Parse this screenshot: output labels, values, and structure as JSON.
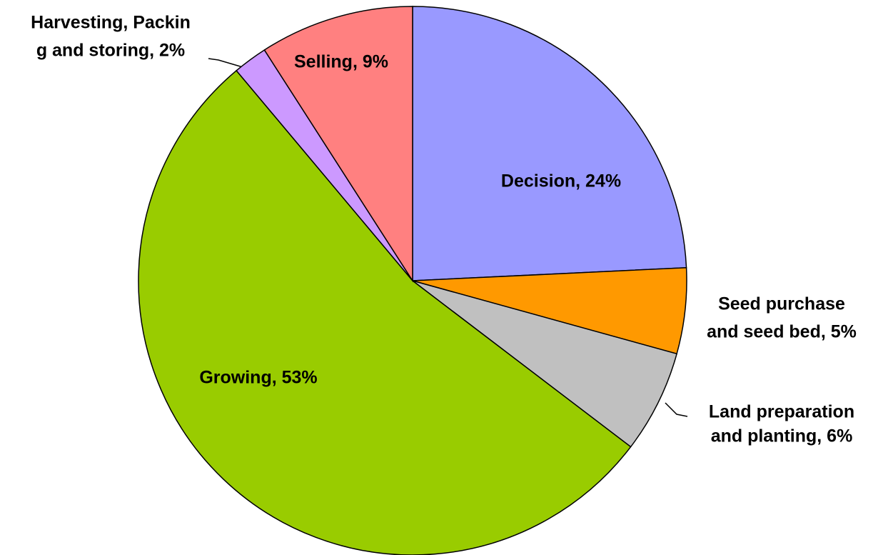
{
  "chart_data": {
    "type": "pie",
    "values": [
      24,
      5,
      6,
      53,
      2,
      9
    ],
    "value_labels": [
      [
        "Decision, 24%"
      ],
      [
        "Seed purchase",
        "and seed bed, 5%"
      ],
      [
        "Land preparation",
        "and planting, 6%"
      ],
      [
        "Growing, 53%"
      ],
      [
        "Harvesting, Packin",
        "g and storing, 2%"
      ],
      [
        "Selling, 9%"
      ]
    ],
    "colors": [
      "#9999ff",
      "#ff9900",
      "#c0c0c0",
      "#99cc00",
      "#cc99ff",
      "#ff8080"
    ]
  }
}
